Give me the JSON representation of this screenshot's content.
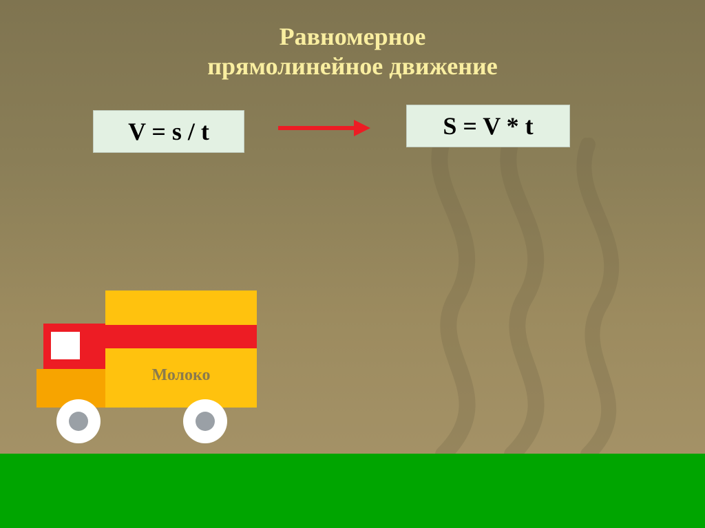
{
  "slide": {
    "title_line1": "Равномерное",
    "title_line2": "прямолинейное движение",
    "title_color": "#f9eea0",
    "title_fontsize": 36,
    "background_top": "#7f7450",
    "background_bottom": "#a8956a",
    "track_color": "#6e6244",
    "track_opacity": 0.25
  },
  "formulas": {
    "left": "V = s / t",
    "right": "S = V * t",
    "box_bg": "#e3f1e3",
    "text_color": "#000000",
    "fontsize": 36
  },
  "arrow": {
    "color": "#ed1c24",
    "line_width": 110,
    "line_height": 6,
    "head_size": 24
  },
  "ground": {
    "color": "#00a500",
    "height": 108
  },
  "truck": {
    "label": "Молоко",
    "label_color": "#8a7a4e",
    "label_fontsize": 24,
    "trailer_color": "#ffc20e",
    "stripe_color": "#ed1c24",
    "front_lower_color": "#f7a400",
    "cab_red": "#ed1c24",
    "cab_window": "#ffffff",
    "wheel_outer": "#ffffff",
    "wheel_inner": "#9aa0a6",
    "wheel_outer_diameter": 64,
    "wheel_inner_diameter": 28
  }
}
